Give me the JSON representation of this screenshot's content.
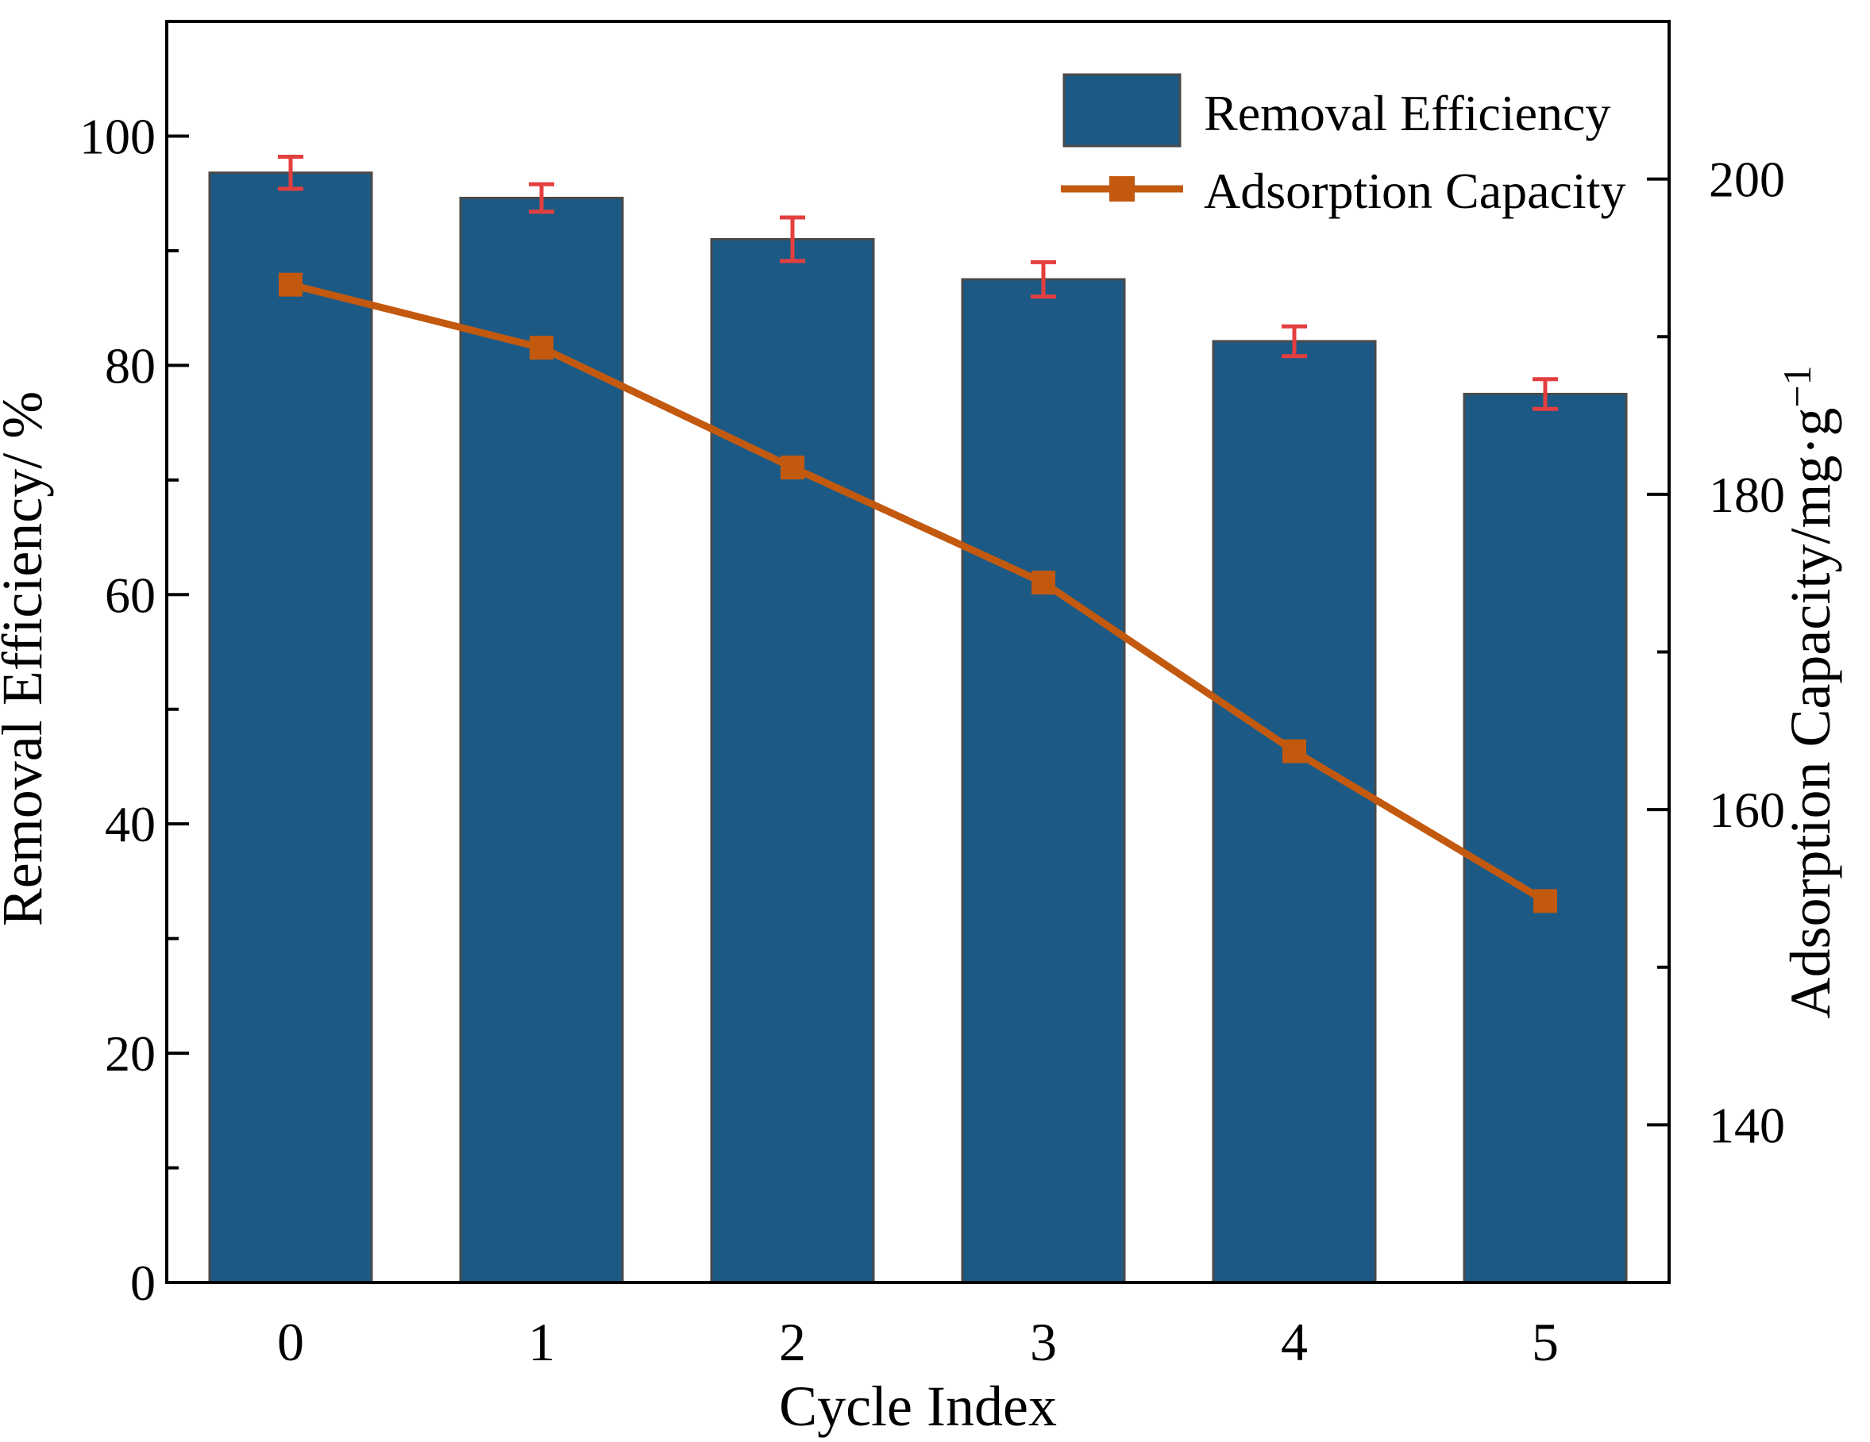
{
  "chart_data": {
    "type": "bar",
    "categories": [
      "0",
      "1",
      "2",
      "3",
      "4",
      "5"
    ],
    "series": [
      {
        "name": "Removal Efficiency",
        "type": "bar",
        "axis": "left",
        "values": [
          96.8,
          94.6,
          91.0,
          87.5,
          82.1,
          77.5
        ],
        "errors": [
          1.4,
          1.2,
          1.9,
          1.5,
          1.3,
          1.3
        ],
        "color": "#1C5A85",
        "edge_color": "#4A4A4A",
        "error_color": "#E43F3F"
      },
      {
        "name": "Adsorption Capacity",
        "type": "line",
        "axis": "right",
        "values": [
          193.3,
          189.3,
          181.7,
          174.4,
          163.7,
          154.2
        ],
        "color": "#C2590F",
        "marker": "square"
      }
    ],
    "title": "",
    "xlabel": "Cycle Index",
    "ylabel_left": "Removal Efficiency/ %",
    "ylabel_right": "Adsorption Capacity/mg·g⁻¹",
    "ylabel_right_base": "Adsorption Capacity/mg·g",
    "ylabel_right_sup": "−1",
    "xticks": [
      "0",
      "1",
      "2",
      "3",
      "4",
      "5"
    ],
    "yticks_left": [
      0,
      20,
      40,
      60,
      80,
      100
    ],
    "yticks_right": [
      140,
      160,
      180,
      200
    ],
    "minor_yticks_left": [
      10,
      30,
      50,
      70,
      90
    ],
    "minor_yticks_right": [
      150,
      170,
      190
    ],
    "ylim_left": [
      0,
      110
    ],
    "ylim_right": [
      130,
      210
    ],
    "grid": false,
    "legend_position": "top-right",
    "legend": [
      "Removal Efficiency",
      "Adsorption Capacity"
    ],
    "colors": {
      "axis": "#000000",
      "background": "#FFFFFF"
    }
  }
}
